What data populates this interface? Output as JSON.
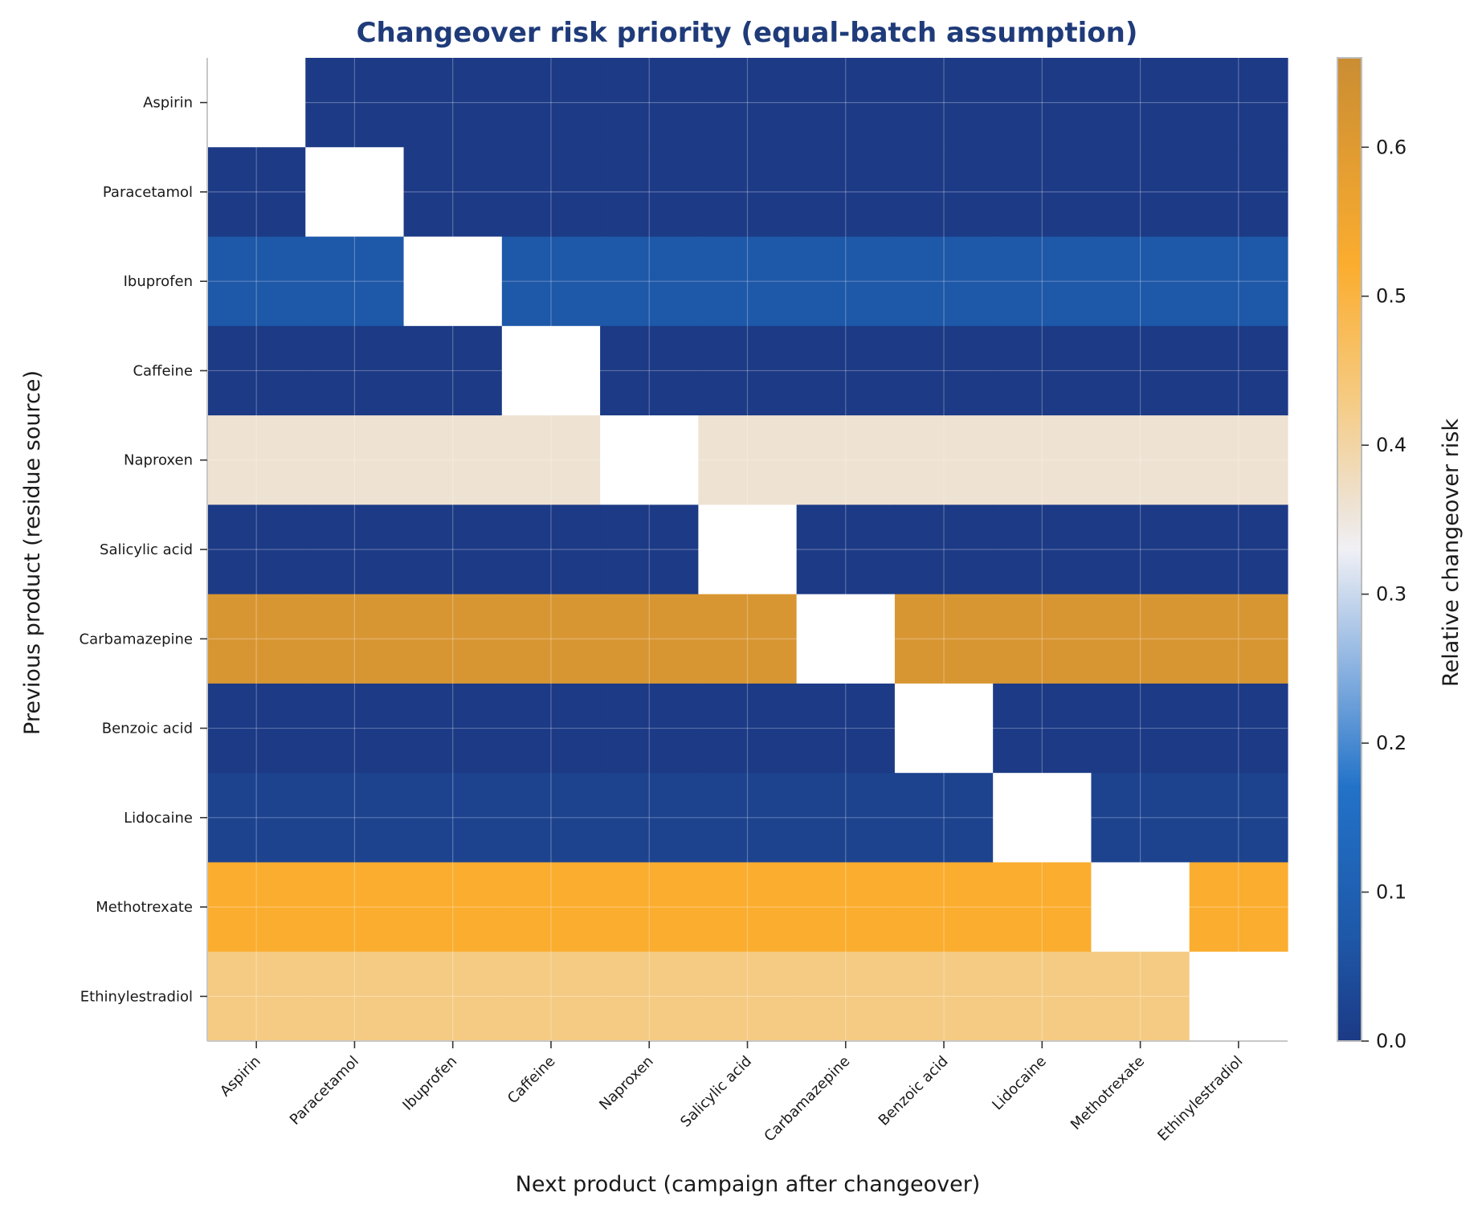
{
  "chart_data": {
    "type": "heatmap",
    "title": "Changeover risk priority (equal-batch assumption)",
    "xlabel": "Next product (campaign after changeover)",
    "ylabel": "Previous product (residue source)",
    "colorbar_label": "Relative changeover risk",
    "x_categories": [
      "Aspirin",
      "Paracetamol",
      "Ibuprofen",
      "Caffeine",
      "Naproxen",
      "Salicylic acid",
      "Carbamazepine",
      "Benzoic acid",
      "Lidocaine",
      "Methotrexate",
      "Ethinylestradiol"
    ],
    "y_categories": [
      "Aspirin",
      "Paracetamol",
      "Ibuprofen",
      "Caffeine",
      "Naproxen",
      "Salicylic acid",
      "Carbamazepine",
      "Benzoic acid",
      "Lidocaine",
      "Methotrexate",
      "Ethinylestradiol"
    ],
    "values": [
      [
        null,
        0.0,
        0.0,
        0.0,
        0.0,
        0.0,
        0.0,
        0.0,
        0.0,
        0.0,
        0.0
      ],
      [
        0.0,
        null,
        0.0,
        0.0,
        0.0,
        0.0,
        0.0,
        0.0,
        0.0,
        0.0,
        0.0
      ],
      [
        0.07,
        0.07,
        null,
        0.07,
        0.07,
        0.07,
        0.07,
        0.07,
        0.07,
        0.07,
        0.07
      ],
      [
        0.0,
        0.0,
        0.0,
        null,
        0.0,
        0.0,
        0.0,
        0.0,
        0.0,
        0.0,
        0.0
      ],
      [
        0.36,
        0.36,
        0.36,
        0.36,
        null,
        0.36,
        0.36,
        0.36,
        0.36,
        0.36,
        0.36
      ],
      [
        0.0,
        0.0,
        0.0,
        0.0,
        0.0,
        null,
        0.0,
        0.0,
        0.0,
        0.0,
        0.0
      ],
      [
        0.62,
        0.62,
        0.62,
        0.62,
        0.62,
        0.62,
        null,
        0.62,
        0.62,
        0.62,
        0.62
      ],
      [
        0.0,
        0.0,
        0.0,
        0.0,
        0.0,
        0.0,
        0.0,
        null,
        0.0,
        0.0,
        0.0
      ],
      [
        0.02,
        0.02,
        0.02,
        0.02,
        0.02,
        0.02,
        0.02,
        0.02,
        null,
        0.02,
        0.02
      ],
      [
        0.52,
        0.52,
        0.52,
        0.52,
        0.52,
        0.52,
        0.52,
        0.52,
        0.52,
        null,
        0.52
      ],
      [
        0.43,
        0.43,
        0.43,
        0.43,
        0.43,
        0.43,
        0.43,
        0.43,
        0.43,
        0.43,
        null
      ]
    ],
    "colorbar_range": [
      0,
      0.66
    ],
    "colorbar_ticks": [
      0.0,
      0.1,
      0.2,
      0.3,
      0.4,
      0.5,
      0.6
    ],
    "colorbar_tick_labels": [
      "0.0",
      "0.1",
      "0.2",
      "0.3",
      "0.4",
      "0.5",
      "0.6"
    ],
    "colormap": [
      {
        "v": 0.0,
        "color": "#1c3a85"
      },
      {
        "v": 0.07,
        "color": "#1e58a8"
      },
      {
        "v": 0.17,
        "color": "#2272c8"
      },
      {
        "v": 0.25,
        "color": "#8ab2e0"
      },
      {
        "v": 0.33,
        "color": "#f0f0f5"
      },
      {
        "v": 0.36,
        "color": "#eee2d2"
      },
      {
        "v": 0.43,
        "color": "#f5cb83"
      },
      {
        "v": 0.52,
        "color": "#fbad2f"
      },
      {
        "v": 0.66,
        "color": "#ca8d33"
      }
    ],
    "masked_color": "#ffffff",
    "grid": true
  }
}
